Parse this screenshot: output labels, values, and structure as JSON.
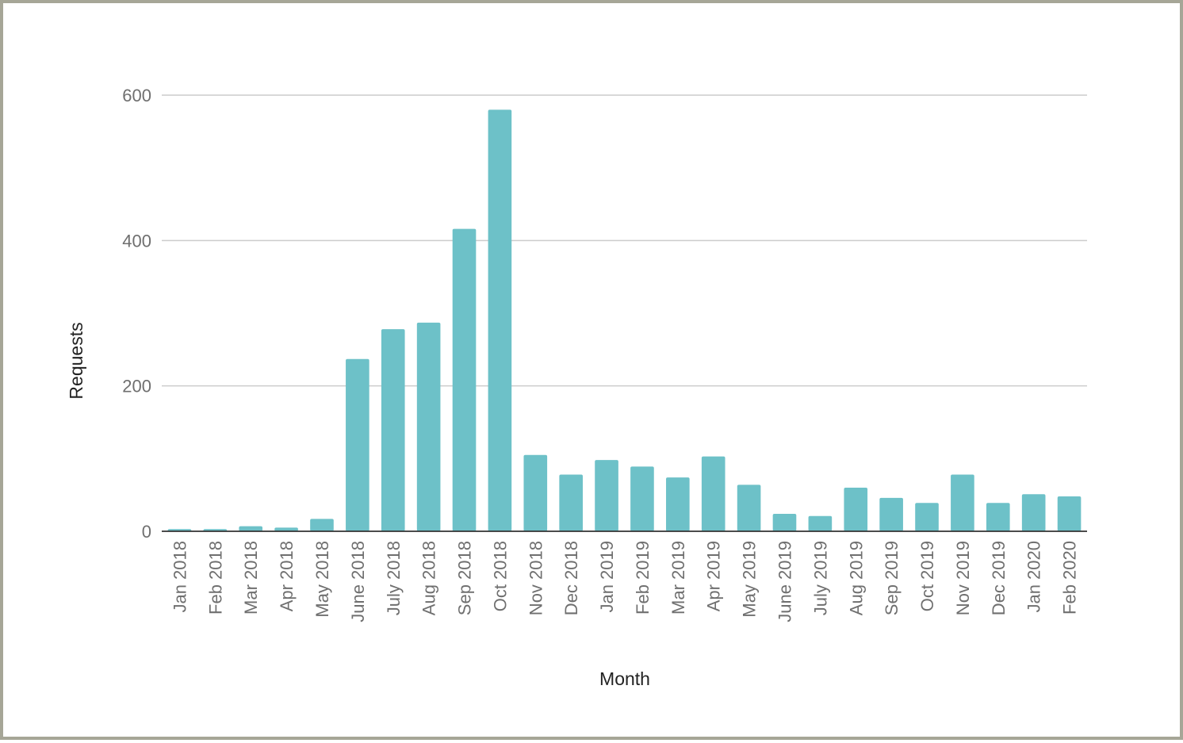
{
  "chart_data": {
    "type": "bar",
    "title": "",
    "xlabel": "Month",
    "ylabel": "Requests",
    "ylim": [
      0,
      600
    ],
    "yticks": [
      0,
      200,
      400,
      600
    ],
    "grid": true,
    "bar_color": "#6dc1c8",
    "categories": [
      "Jan 2018",
      "Feb 2018",
      "Mar 2018",
      "Apr 2018",
      "May 2018",
      "June 2018",
      "July 2018",
      "Aug 2018",
      "Sep 2018",
      "Oct 2018",
      "Nov 2018",
      "Dec 2018",
      "Jan 2019",
      "Feb 2019",
      "Mar 2019",
      "Apr 2019",
      "May 2019",
      "June 2019",
      "July 2019",
      "Aug 2019",
      "Sep 2019",
      "Oct 2019",
      "Nov 2019",
      "Dec 2019",
      "Jan 2020",
      "Feb 2020"
    ],
    "values": [
      3,
      3,
      7,
      5,
      17,
      237,
      278,
      287,
      416,
      580,
      105,
      78,
      98,
      89,
      74,
      103,
      64,
      24,
      21,
      60,
      46,
      39,
      78,
      39,
      51,
      48
    ]
  }
}
